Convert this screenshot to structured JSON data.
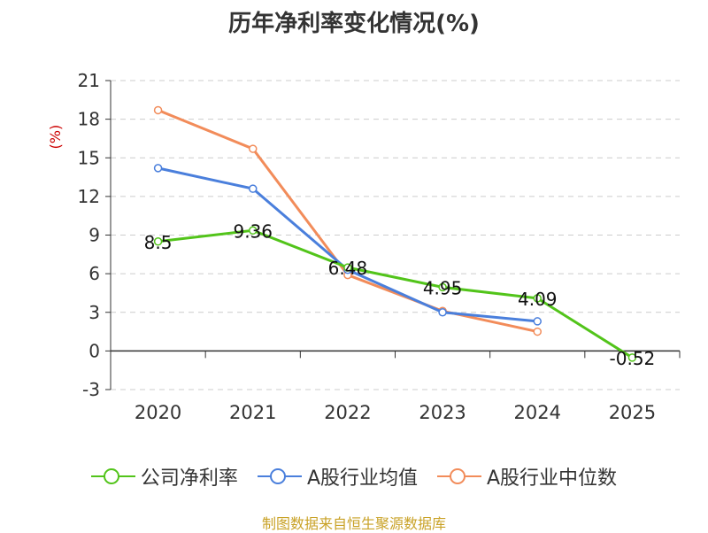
{
  "chart_data": {
    "type": "line",
    "title": "历年净利率变化情况(%)",
    "ylabel": "(%)",
    "categories": [
      "2020",
      "2021",
      "2022",
      "2023",
      "2024",
      "2025"
    ],
    "ylim": [
      -3,
      21
    ],
    "yticks": [
      -3,
      0,
      3,
      6,
      9,
      12,
      15,
      18,
      21
    ],
    "grid": true,
    "legend_position": "bottom",
    "series": [
      {
        "name": "公司净利率",
        "color": "#52c41a",
        "values": [
          8.5,
          9.36,
          6.48,
          4.95,
          4.09,
          -0.52
        ],
        "labels": [
          "8.5",
          "9.36",
          "6.48",
          "4.95",
          "4.09",
          "-0.52"
        ]
      },
      {
        "name": "A股行业均值",
        "color": "#4a7fdc",
        "values": [
          14.2,
          12.6,
          6.3,
          3.0,
          2.3,
          null
        ]
      },
      {
        "name": "A股行业中位数",
        "color": "#f28c5a",
        "values": [
          18.7,
          15.7,
          5.9,
          3.1,
          1.5,
          null
        ]
      }
    ]
  },
  "source": "制图数据来自恒生聚源数据库"
}
